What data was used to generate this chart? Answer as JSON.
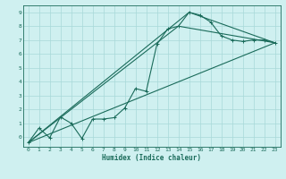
{
  "xlabel": "Humidex (Indice chaleur)",
  "bg_color": "#cff0f0",
  "grid_color": "#a8d8d8",
  "line_color": "#1a6b5a",
  "xlim": [
    -0.5,
    23.5
  ],
  "ylim": [
    -0.7,
    9.5
  ],
  "xticks": [
    0,
    1,
    2,
    3,
    4,
    5,
    6,
    7,
    8,
    9,
    10,
    11,
    12,
    13,
    14,
    15,
    16,
    17,
    18,
    19,
    20,
    21,
    22,
    23
  ],
  "yticks": [
    0,
    1,
    2,
    3,
    4,
    5,
    6,
    7,
    8,
    9
  ],
  "line1_x": [
    0,
    1,
    2,
    3,
    4,
    5,
    6,
    7,
    8,
    9,
    10,
    11,
    12,
    13,
    14,
    15,
    16,
    17,
    18,
    19,
    20,
    21,
    22,
    23
  ],
  "line1_y": [
    -0.4,
    0.65,
    -0.05,
    1.45,
    1.0,
    -0.1,
    1.3,
    1.3,
    1.4,
    2.1,
    3.5,
    3.3,
    6.7,
    7.8,
    8.0,
    9.0,
    8.8,
    8.3,
    7.3,
    7.0,
    6.9,
    7.0,
    7.0,
    6.8
  ],
  "line2_x": [
    0,
    23
  ],
  "line2_y": [
    -0.4,
    6.8
  ],
  "line3_x": [
    0,
    14,
    23
  ],
  "line3_y": [
    -0.4,
    8.0,
    6.8
  ],
  "line4_x": [
    0,
    15,
    23
  ],
  "line4_y": [
    -0.4,
    9.0,
    6.8
  ]
}
